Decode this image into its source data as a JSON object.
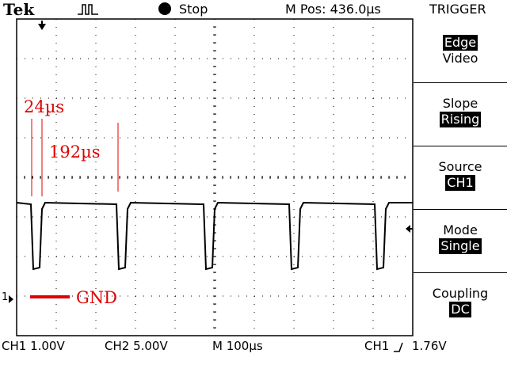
{
  "top_bar": {
    "brand": "Tek",
    "acquisition_icon": "pulse-waveform-icon",
    "run_state_icon": "stop-dot-icon",
    "run_state": "Stop",
    "m_pos": "M Pos: 436.0µs",
    "menu_title": "TRIGGER"
  },
  "menu": {
    "type": {
      "option_1": "Edge",
      "option_2": "Video",
      "selected": "Edge"
    },
    "slope": {
      "label": "Slope",
      "value": "Rising"
    },
    "source": {
      "label": "Source",
      "value": "CH1"
    },
    "mode": {
      "label": "Mode",
      "value": "Single"
    },
    "coupling": {
      "label": "Coupling",
      "value": "DC"
    }
  },
  "bottom_bar": {
    "ch1_scale": "CH1  1.00V",
    "ch2_scale": "CH2  5.00V",
    "timebase": "M 100µs",
    "trigger_source": "CH1",
    "trigger_slope_icon": "rising-edge-icon",
    "trigger_level": "1.76V"
  },
  "markers": {
    "ch1_ground": "1",
    "trigger_position_icon": "trigger-position-arrow-icon",
    "trigger_level_icon": "trigger-level-arrow-icon"
  },
  "annotations": {
    "pulse_width": "24µs",
    "period": "192µs",
    "ground": "GND"
  },
  "colors": {
    "annotation": "#e00000",
    "trace": "#000000",
    "background": "#ffffff"
  }
}
